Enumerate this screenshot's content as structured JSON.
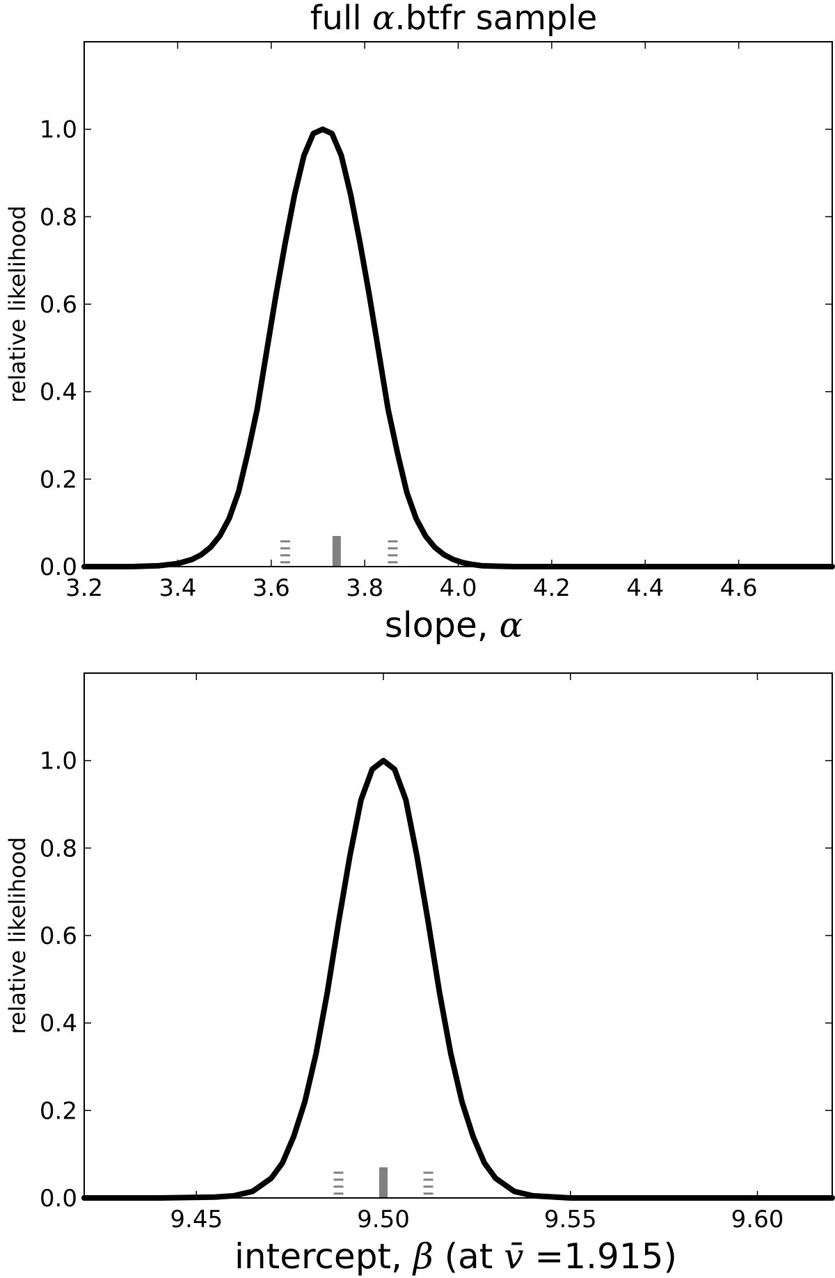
{
  "title": "full α.btfr sample",
  "title_parts": {
    "pre": "full ",
    "math": "α",
    "post": ".btfr sample"
  },
  "chart_data": [
    {
      "type": "line",
      "xlabel": "slope, α",
      "xlabel_parts": {
        "pre": "slope, ",
        "math": "α",
        "post": ""
      },
      "ylabel": "relative likelihood",
      "xlim": [
        3.2,
        4.8
      ],
      "ylim": [
        0,
        1.2
      ],
      "xticks": [
        3.2,
        3.4,
        3.6,
        3.8,
        4.0,
        4.2,
        4.4,
        4.6
      ],
      "xtick_labels": [
        "3.2",
        "3.4",
        "3.6",
        "3.8",
        "4.0",
        "4.2",
        "4.4",
        "4.6"
      ],
      "yticks": [
        0.0,
        0.2,
        0.4,
        0.6,
        0.8,
        1.0
      ],
      "ytick_labels": [
        "0.0",
        "0.2",
        "0.4",
        "0.6",
        "0.8",
        "1.0"
      ],
      "series": [
        {
          "color": "#000000",
          "x": [
            3.2,
            3.3,
            3.36,
            3.4,
            3.43,
            3.45,
            3.47,
            3.49,
            3.51,
            3.53,
            3.55,
            3.57,
            3.59,
            3.61,
            3.63,
            3.65,
            3.67,
            3.69,
            3.71,
            3.73,
            3.75,
            3.77,
            3.79,
            3.81,
            3.83,
            3.85,
            3.87,
            3.89,
            3.91,
            3.93,
            3.95,
            3.97,
            3.99,
            4.01,
            4.03,
            4.05,
            4.08,
            4.12,
            4.2,
            4.4,
            4.8
          ],
          "y": [
            0.0,
            0.0,
            0.002,
            0.007,
            0.016,
            0.027,
            0.044,
            0.07,
            0.11,
            0.17,
            0.26,
            0.36,
            0.49,
            0.62,
            0.74,
            0.85,
            0.94,
            0.99,
            1.0,
            0.99,
            0.94,
            0.85,
            0.74,
            0.62,
            0.49,
            0.36,
            0.26,
            0.17,
            0.11,
            0.07,
            0.044,
            0.027,
            0.016,
            0.009,
            0.005,
            0.002,
            0.001,
            0.0,
            0.0,
            0.0,
            0.0
          ]
        }
      ],
      "markers": {
        "color": "#808080",
        "center": {
          "x": 3.74,
          "height": 0.07
        },
        "dashed": [
          {
            "x": 3.63,
            "height": 0.06
          },
          {
            "x": 3.86,
            "height": 0.06
          }
        ]
      }
    },
    {
      "type": "line",
      "xlabel": "intercept, β  (at v̄ =1.915)",
      "xlabel_parts": {
        "pre": "intercept, ",
        "math": "β",
        "mid": "  (at ",
        "math2": "v̄",
        "post": " =1.915)"
      },
      "ylabel": "relative likelihood",
      "xlim": [
        9.42,
        9.62
      ],
      "ylim": [
        0,
        1.2
      ],
      "xticks": [
        9.45,
        9.5,
        9.55,
        9.6
      ],
      "xtick_labels": [
        "9.45",
        "9.50",
        "9.55",
        "9.60"
      ],
      "yticks": [
        0.0,
        0.2,
        0.4,
        0.6,
        0.8,
        1.0
      ],
      "ytick_labels": [
        "0.0",
        "0.2",
        "0.4",
        "0.6",
        "0.8",
        "1.0"
      ],
      "series": [
        {
          "color": "#000000",
          "x": [
            9.42,
            9.44,
            9.455,
            9.46,
            9.465,
            9.47,
            9.473,
            9.476,
            9.479,
            9.482,
            9.485,
            9.488,
            9.491,
            9.494,
            9.497,
            9.5,
            9.503,
            9.506,
            9.509,
            9.512,
            9.515,
            9.518,
            9.521,
            9.524,
            9.527,
            9.53,
            9.535,
            9.54,
            9.55,
            9.58,
            9.62
          ],
          "y": [
            0.0,
            0.0,
            0.002,
            0.005,
            0.015,
            0.045,
            0.08,
            0.14,
            0.22,
            0.33,
            0.47,
            0.63,
            0.78,
            0.91,
            0.98,
            1.0,
            0.98,
            0.91,
            0.78,
            0.63,
            0.47,
            0.33,
            0.22,
            0.14,
            0.08,
            0.045,
            0.015,
            0.005,
            0.0,
            0.0,
            0.0
          ]
        }
      ],
      "markers": {
        "color": "#808080",
        "center": {
          "x": 9.5,
          "height": 0.07
        },
        "dashed": [
          {
            "x": 9.488,
            "height": 0.06
          },
          {
            "x": 9.512,
            "height": 0.06
          }
        ]
      }
    }
  ]
}
